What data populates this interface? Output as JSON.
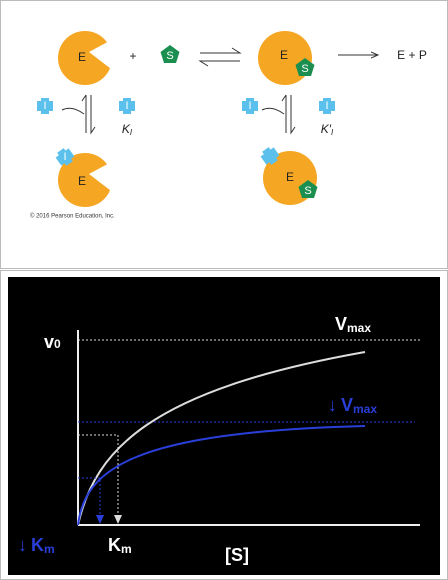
{
  "diagram": {
    "enzyme_labels": [
      "E",
      "E",
      "E",
      "E"
    ],
    "substrate_labels": [
      "S",
      "S",
      "S"
    ],
    "plus": "+",
    "product": "E + P",
    "inhibitor_labels": [
      "I",
      "I",
      "I",
      "I"
    ],
    "ki": {
      "text": "K",
      "sub": "I"
    },
    "ki_prime": {
      "text": "K′",
      "sub": "I"
    },
    "copyright": "© 2016 Pearson Education, Inc."
  },
  "plot": {
    "y_label": {
      "text": "v",
      "sub": "0"
    },
    "vmax": {
      "text": "V",
      "sub": "max"
    },
    "vmax_inhibited": {
      "arrow": "↓",
      "text": "V",
      "sub": "max"
    },
    "km_inhibited": {
      "arrow": "↓",
      "text": "K",
      "sub": "m"
    },
    "km": {
      "text": "K",
      "sub": "m"
    },
    "x_label": "[S]"
  }
}
